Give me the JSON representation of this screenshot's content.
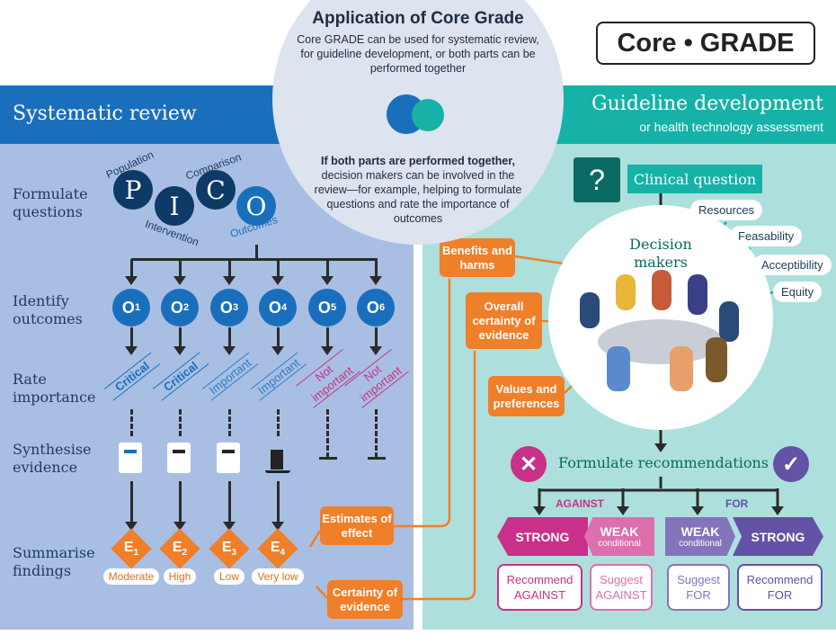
{
  "header": {
    "title": "Application of Core Grade",
    "subtitle": "Core GRADE can be used for systematic review, for guideline development, or both parts can be performed together",
    "logo": "Core • GRADE"
  },
  "middle_note": {
    "bold": "If both parts are performed together,",
    "text": "decision makers can be involved in the review—for example, helping to formulate questions and rate the importance of outcomes"
  },
  "left": {
    "title": "Systematic review",
    "color": "#1a6fbd",
    "rows": [
      "Formulate questions",
      "Identify outcomes",
      "Rate importance",
      "Synthesise evidence",
      "Summarise findings"
    ],
    "pico": [
      {
        "letter": "P",
        "label": "Population"
      },
      {
        "letter": "I",
        "label": "Intervention"
      },
      {
        "letter": "C",
        "label": "Comparison"
      },
      {
        "letter": "O",
        "label": "Outcomes"
      }
    ],
    "outcomes": [
      {
        "o": "O",
        "n": "1",
        "importance": "Critical"
      },
      {
        "o": "O",
        "n": "2",
        "importance": "Critical"
      },
      {
        "o": "O",
        "n": "3",
        "importance": "Important"
      },
      {
        "o": "O",
        "n": "4",
        "importance": "Important"
      },
      {
        "o": "O",
        "n": "5",
        "importance": "Not important"
      },
      {
        "o": "O",
        "n": "6",
        "importance": "Not important"
      }
    ],
    "evidence_icons": [
      "text-document-icon",
      "scatter-plot-icon",
      "pie-chart-monitor-icon",
      "bar-chart-icon"
    ],
    "findings": [
      {
        "e": "E",
        "n": "1",
        "certainty": "Moderate"
      },
      {
        "e": "E",
        "n": "2",
        "certainty": "High"
      },
      {
        "e": "E",
        "n": "3",
        "certainty": "Low"
      },
      {
        "e": "E",
        "n": "4",
        "certainty": "Very low"
      }
    ],
    "outputs": [
      "Estimates of effect",
      "Certainty of evidence"
    ]
  },
  "right": {
    "title": "Guideline development",
    "subtitle": "or health technology assessment",
    "color": "#16b2a7",
    "clinical_question": "Clinical question",
    "question_mark": "?",
    "decision_makers": "Decision makers",
    "factors": [
      "Resources",
      "Feasability",
      "Acceptibility",
      "Equity"
    ],
    "inputs": [
      "Benefits and harms",
      "Overall certainty of evidence",
      "Values and preferences"
    ],
    "formulate": "Formulate recommendations",
    "against": "AGAINST",
    "for": "FOR",
    "chevrons": [
      {
        "label": "STRONG",
        "sub": ""
      },
      {
        "label": "WEAK",
        "sub": "conditional"
      },
      {
        "label": "WEAK",
        "sub": "conditional"
      },
      {
        "label": "STRONG",
        "sub": ""
      }
    ],
    "bubbles": [
      [
        "Recommend",
        "AGAINST"
      ],
      [
        "Suggest",
        "AGAINST"
      ],
      [
        "Suggest",
        "FOR"
      ],
      [
        "Recommend",
        "FOR"
      ]
    ]
  },
  "colors": {
    "orange": "#f07f2a",
    "against_strong": "#c8308a",
    "against_weak": "#dd6fae",
    "for_weak": "#8474bc",
    "for_strong": "#6352a5"
  }
}
